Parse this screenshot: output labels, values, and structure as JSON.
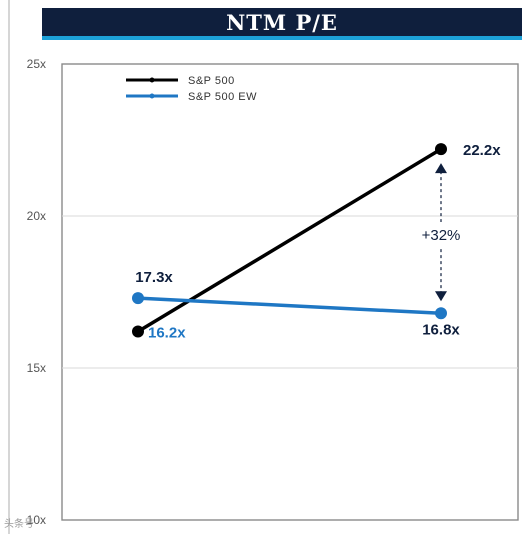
{
  "title": "NTM P/E",
  "watermark": "头条号",
  "colors": {
    "header_bg": "#0f1f3d",
    "header_accent": "#1da1d8",
    "series1": "#000000",
    "series2": "#1f77c4",
    "label_dark": "#0f1f3d",
    "annotation": "#0f1f3d"
  },
  "chart_data": {
    "type": "line",
    "title": "NTM P/E",
    "xlabel": "",
    "ylabel": "",
    "ylim": [
      10,
      25
    ],
    "yticks": [
      "25x",
      "20x",
      "15x",
      "10x"
    ],
    "ytick_values": [
      25,
      20,
      15,
      10
    ],
    "grid": true,
    "legend_position": "top-left",
    "x": [
      0,
      1
    ],
    "series": [
      {
        "name": "S&P 500",
        "values": [
          16.2,
          22.2
        ],
        "labels": [
          "16.2x",
          "22.2x"
        ],
        "color": "#000000"
      },
      {
        "name": "S&P 500 EW",
        "values": [
          17.3,
          16.8
        ],
        "labels": [
          "17.3x",
          "16.8x"
        ],
        "color": "#1f77c4"
      }
    ],
    "annotation": {
      "text": "+32%",
      "between_values": [
        22.2,
        16.8
      ]
    }
  }
}
